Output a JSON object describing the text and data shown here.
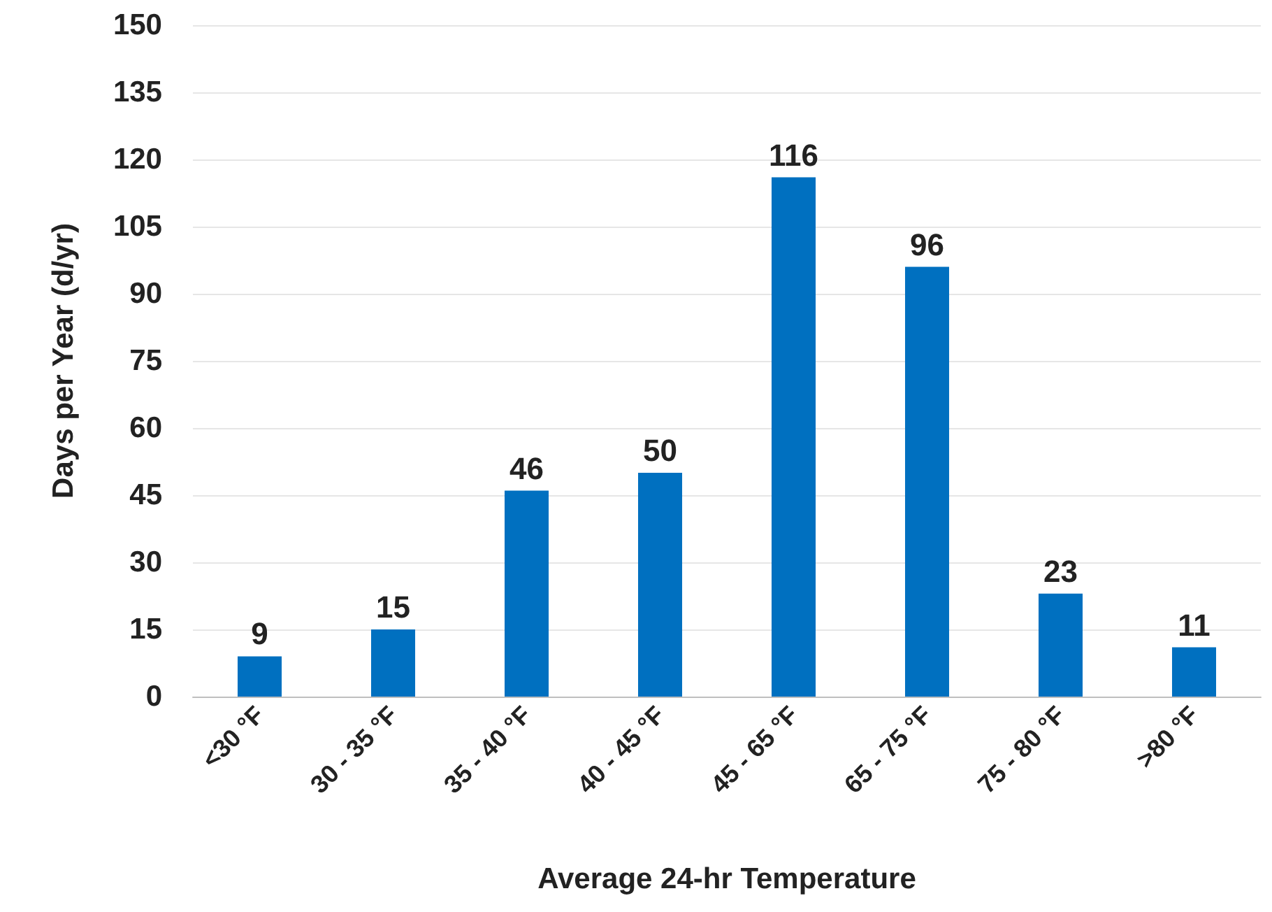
{
  "chart_data": {
    "type": "bar",
    "xlabel": "Average 24-hr Temperature",
    "ylabel": "Days per Year (d/yr)",
    "categories": [
      "<30 °F",
      "30 - 35 °F",
      "35 - 40 °F",
      "40 - 45 °F",
      "45 - 65 °F",
      "65 - 75 °F",
      "75 - 80 °F",
      ">80 °F"
    ],
    "values": [
      9,
      15,
      46,
      50,
      116,
      96,
      23,
      11
    ],
    "color": "#0070c0",
    "ylim": [
      0,
      150
    ],
    "yticks": [
      0,
      15,
      30,
      45,
      60,
      75,
      90,
      105,
      120,
      135,
      150
    ],
    "grid": "y",
    "data_labels": true
  }
}
